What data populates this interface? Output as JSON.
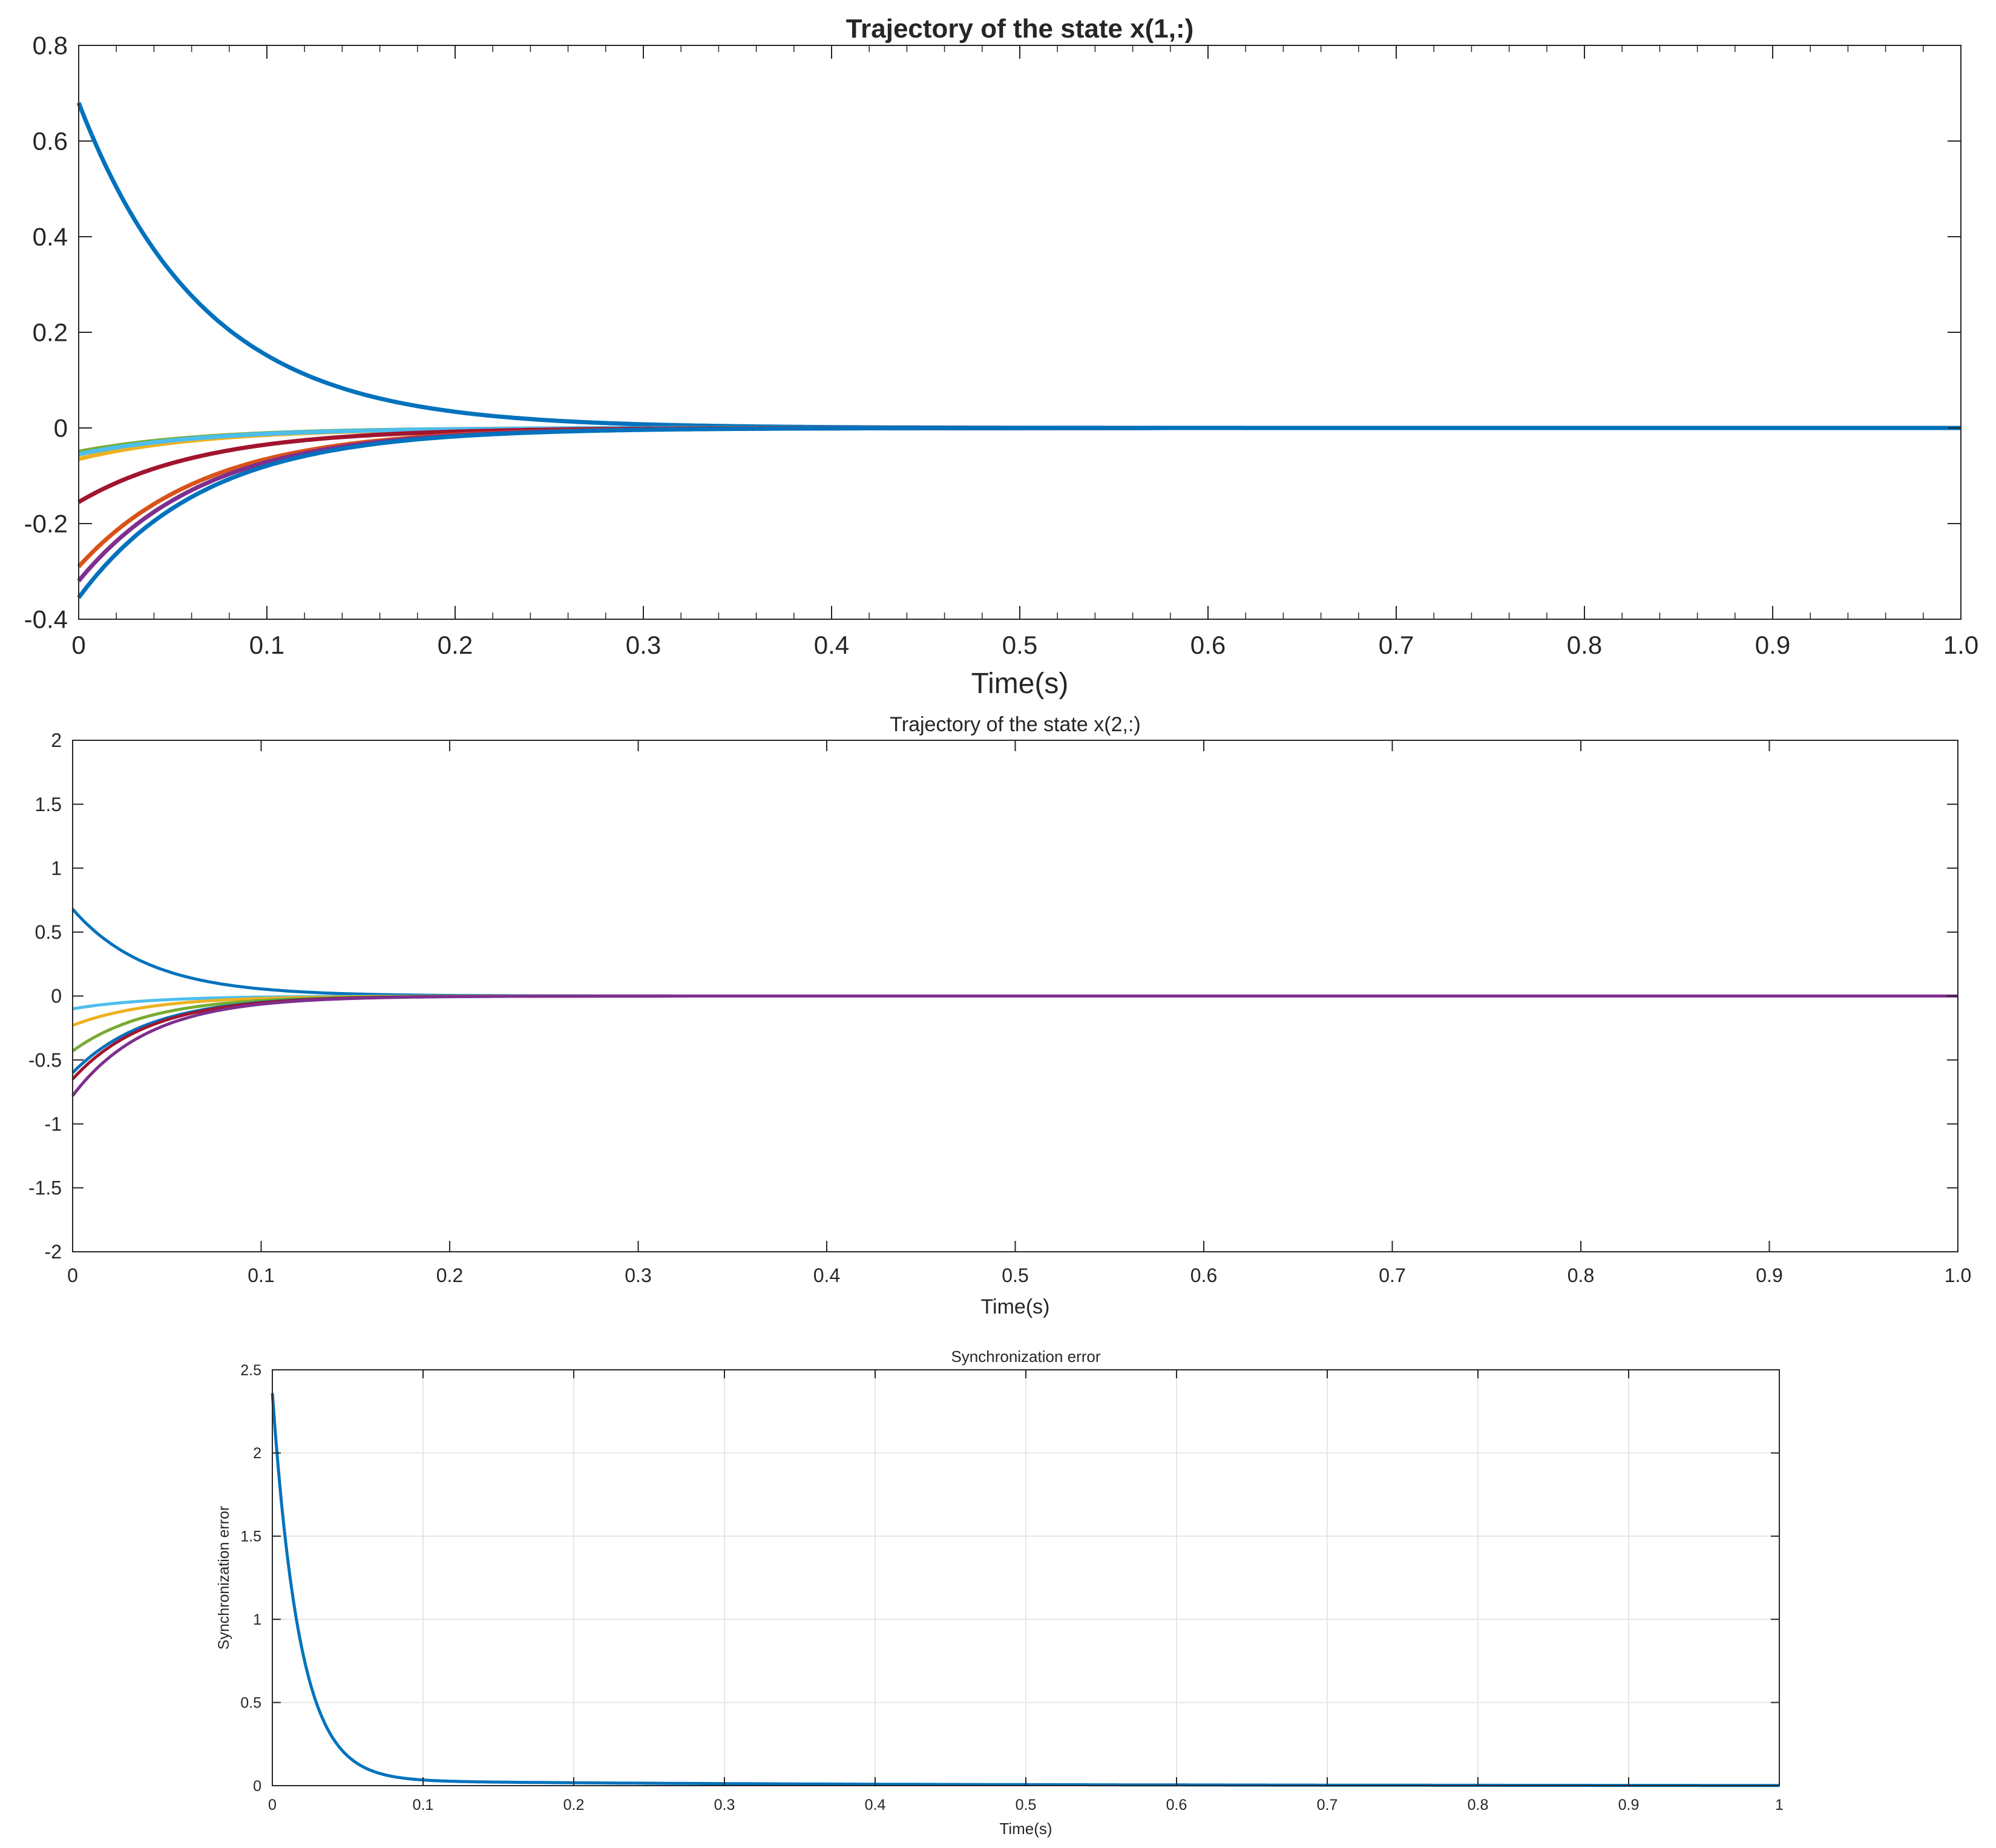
{
  "colors": {
    "blue": "#0072BD",
    "orange": "#D95319",
    "yellow": "#EDB120",
    "purple": "#7E2F8E",
    "green": "#77AC30",
    "cyan": "#4DBEEE",
    "maroon": "#A2142F",
    "axis": "#262626",
    "grid": "#e6e6e6"
  },
  "chart_data": [
    {
      "type": "line",
      "title": "Trajectory of the state x(1,:)",
      "xlabel": "Time(s)",
      "ylabel": "",
      "xlim": [
        0,
        1
      ],
      "ylim": [
        -0.4,
        0.8
      ],
      "xticks": [
        "0",
        "0.1",
        "0.2",
        "0.3",
        "0.4",
        "0.5",
        "0.6",
        "0.7",
        "0.8",
        "0.9",
        "1.0"
      ],
      "yticks": [
        "-0.4",
        "-0.2",
        "0",
        "0.2",
        "0.4",
        "0.6",
        "0.8"
      ],
      "grid": false,
      "decay_rate": 15,
      "series": [
        {
          "color": "blue",
          "initial": 0.68
        },
        {
          "color": "yellow",
          "initial": -0.065
        },
        {
          "color": "green",
          "initial": -0.05
        },
        {
          "color": "cyan",
          "initial": -0.055
        },
        {
          "color": "maroon",
          "initial": -0.155
        },
        {
          "color": "orange",
          "initial": -0.29
        },
        {
          "color": "purple",
          "initial": -0.32
        },
        {
          "color": "blue",
          "initial": -0.355
        }
      ]
    },
    {
      "type": "line",
      "title": "Trajectory of the state x(2,:)",
      "xlabel": "Time(s)",
      "ylabel": "",
      "xlim": [
        0,
        1
      ],
      "ylim": [
        -2,
        2
      ],
      "xticks": [
        "0",
        "0.1",
        "0.2",
        "0.3",
        "0.4",
        "0.5",
        "0.6",
        "0.7",
        "0.8",
        "0.9",
        "1.0"
      ],
      "yticks": [
        "-2",
        "-1.5",
        "-1",
        "-0.5",
        "0",
        "0.5",
        "1",
        "1.5",
        "2"
      ],
      "grid": false,
      "decay_rate": 25,
      "series": [
        {
          "color": "blue",
          "initial": 0.68
        },
        {
          "color": "cyan",
          "initial": -0.1
        },
        {
          "color": "yellow",
          "initial": -0.23
        },
        {
          "color": "green",
          "initial": -0.43
        },
        {
          "color": "blue",
          "initial": -0.6
        },
        {
          "color": "maroon",
          "initial": -0.65
        },
        {
          "color": "purple",
          "initial": -0.78
        }
      ]
    },
    {
      "type": "line",
      "title": "Synchronization error",
      "xlabel": "Time(s)",
      "ylabel": "Synchronization error",
      "xlim": [
        0,
        1
      ],
      "ylim": [
        0,
        2.5
      ],
      "xticks": [
        "0",
        "0.1",
        "0.2",
        "0.3",
        "0.4",
        "0.5",
        "0.6",
        "0.7",
        "0.8",
        "0.9",
        "1"
      ],
      "yticks": [
        "0",
        "0.5",
        "1",
        "1.5",
        "2",
        "2.5"
      ],
      "grid": true,
      "series": [
        {
          "color": "blue",
          "initial": 2.36
        }
      ]
    }
  ]
}
